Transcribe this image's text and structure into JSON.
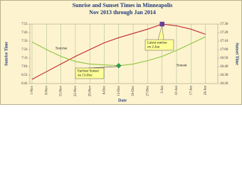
{
  "chart_data": {
    "type": "line",
    "title": "Sunrise and Sunset Times in Minneapolis",
    "subtitle": "Nov 2013 through Jan 2014",
    "x_label": "Date",
    "y_label": "Sunrise Time",
    "y2_label": "Sunset Time",
    "categories": [
      "1-Nov",
      "8-Nov",
      "15-Nov",
      "22-Nov",
      "29-Nov",
      "6-Dec",
      "13-Dec",
      "20-Dec",
      "27-Dec",
      "3-Jan",
      "10-Jan",
      "17-Jan",
      "24-Jan"
    ],
    "series": [
      {
        "name": "Sunrise",
        "color": "#c0282d",
        "values": [
          406,
          415,
          424,
          433,
          441,
          449,
          455,
          460,
          465,
          471,
          469,
          465,
          459
        ]
      },
      {
        "name": "Sunset",
        "color": "#8dc63f",
        "axis": "y2",
        "values": [
          1029,
          1020,
          1012,
          1006,
          1003,
          1002,
          1001,
          1003,
          1007,
          1012,
          1019,
          1027,
          1035
        ]
      }
    ],
    "ylim": [
      401,
      471
    ],
    "yticks": [
      {
        "value": 401,
        "label": "6:41"
      },
      {
        "value": 411,
        "label": "6:51"
      },
      {
        "value": 421,
        "label": "7:01"
      },
      {
        "value": 431,
        "label": "7:11"
      },
      {
        "value": 441,
        "label": "7:21"
      },
      {
        "value": 451,
        "label": "7:31"
      },
      {
        "value": 461,
        "label": "7:41"
      },
      {
        "value": 471,
        "label": "7:51"
      }
    ],
    "y2lim": [
      980,
      1050
    ],
    "y2ticks": [
      {
        "value": 980,
        "label": "16:20"
      },
      {
        "value": 990,
        "label": "16:30"
      },
      {
        "value": 1000,
        "label": "16:40"
      },
      {
        "value": 1010,
        "label": "16:50"
      },
      {
        "value": 1020,
        "label": "17:00"
      },
      {
        "value": 1030,
        "label": "17:10"
      },
      {
        "value": 1040,
        "label": "17:20"
      },
      {
        "value": 1050,
        "label": "17:30"
      }
    ],
    "grid": true,
    "annotations": [
      {
        "lines": [
          "Earliest Sunset",
          "on 13-Dec"
        ]
      },
      {
        "lines": [
          "Latest sunrise",
          "on 2-Jan"
        ]
      }
    ]
  }
}
